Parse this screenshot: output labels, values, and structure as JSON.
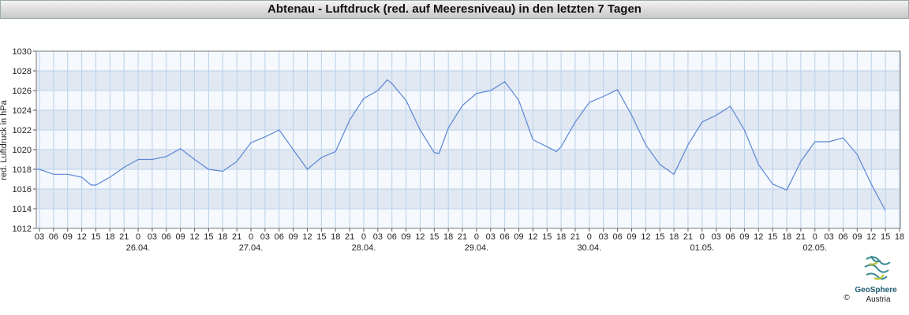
{
  "chart_data": {
    "type": "line",
    "title": "Abtenau - Luftdruck (red. auf Meeresniveau) in den letzten 7 Tagen",
    "y_label": "red. Luftdruck in hPa",
    "color": "#5b86d6",
    "grid": true,
    "ylim": [
      1012,
      1030
    ],
    "yticks": [
      1012,
      1014,
      1016,
      1018,
      1020,
      1022,
      1024,
      1026,
      1028,
      1030
    ],
    "xlim": [
      2.33,
      186.17
    ],
    "xticks": [
      {
        "value": 3,
        "label": "03"
      },
      {
        "value": 6,
        "label": "06"
      },
      {
        "value": 9,
        "label": "09"
      },
      {
        "value": 12,
        "label": "12"
      },
      {
        "value": 15,
        "label": "15"
      },
      {
        "value": 18,
        "label": "18"
      },
      {
        "value": 21,
        "label": "21"
      },
      {
        "value": 24,
        "label": "0"
      },
      {
        "value": 27,
        "label": "03"
      },
      {
        "value": 30,
        "label": "06"
      },
      {
        "value": 33,
        "label": "09"
      },
      {
        "value": 36,
        "label": "12"
      },
      {
        "value": 39,
        "label": "15"
      },
      {
        "value": 42,
        "label": "18"
      },
      {
        "value": 45,
        "label": "21"
      },
      {
        "value": 48,
        "label": "0"
      },
      {
        "value": 51,
        "label": "03"
      },
      {
        "value": 54,
        "label": "06"
      },
      {
        "value": 57,
        "label": "09"
      },
      {
        "value": 60,
        "label": "12"
      },
      {
        "value": 63,
        "label": "15"
      },
      {
        "value": 66,
        "label": "18"
      },
      {
        "value": 69,
        "label": "21"
      },
      {
        "value": 72,
        "label": "0"
      },
      {
        "value": 75,
        "label": "03"
      },
      {
        "value": 78,
        "label": "06"
      },
      {
        "value": 81,
        "label": "09"
      },
      {
        "value": 84,
        "label": "12"
      },
      {
        "value": 87,
        "label": "15"
      },
      {
        "value": 90,
        "label": "18"
      },
      {
        "value": 93,
        "label": "21"
      },
      {
        "value": 96,
        "label": "0"
      },
      {
        "value": 99,
        "label": "03"
      },
      {
        "value": 102,
        "label": "06"
      },
      {
        "value": 105,
        "label": "09"
      },
      {
        "value": 108,
        "label": "12"
      },
      {
        "value": 111,
        "label": "15"
      },
      {
        "value": 114,
        "label": "18"
      },
      {
        "value": 117,
        "label": "21"
      },
      {
        "value": 120,
        "label": "0"
      },
      {
        "value": 123,
        "label": "03"
      },
      {
        "value": 126,
        "label": "06"
      },
      {
        "value": 129,
        "label": "09"
      },
      {
        "value": 132,
        "label": "12"
      },
      {
        "value": 135,
        "label": "15"
      },
      {
        "value": 138,
        "label": "18"
      },
      {
        "value": 141,
        "label": "21"
      },
      {
        "value": 144,
        "label": "0"
      },
      {
        "value": 147,
        "label": "03"
      },
      {
        "value": 150,
        "label": "06"
      },
      {
        "value": 153,
        "label": "09"
      },
      {
        "value": 156,
        "label": "12"
      },
      {
        "value": 159,
        "label": "15"
      },
      {
        "value": 162,
        "label": "18"
      },
      {
        "value": 165,
        "label": "21"
      },
      {
        "value": 168,
        "label": "0"
      },
      {
        "value": 171,
        "label": "03"
      },
      {
        "value": 174,
        "label": "06"
      },
      {
        "value": 177,
        "label": "09"
      },
      {
        "value": 180,
        "label": "12"
      },
      {
        "value": 183,
        "label": "15"
      },
      {
        "value": 186,
        "label": "18"
      }
    ],
    "date_ticks": [
      {
        "value": 24,
        "label": "26.04."
      },
      {
        "value": 48,
        "label": "27.04."
      },
      {
        "value": 72,
        "label": "28.04."
      },
      {
        "value": 96,
        "label": "29.04."
      },
      {
        "value": 120,
        "label": "30.04."
      },
      {
        "value": 144,
        "label": "01.05."
      },
      {
        "value": 168,
        "label": "02.05."
      }
    ],
    "x": [
      2.33,
      3,
      6,
      9,
      12,
      14,
      15,
      18,
      21,
      24,
      27,
      30,
      33,
      36,
      39,
      42,
      45,
      48,
      51,
      54,
      57,
      60,
      63,
      66,
      69,
      72,
      75,
      77,
      78,
      81,
      84,
      87,
      88,
      90,
      93,
      96,
      99,
      102,
      105,
      108,
      111,
      113,
      114,
      117,
      120,
      123,
      126,
      129,
      132,
      135,
      138,
      141,
      144,
      147,
      150,
      153,
      156,
      159,
      162,
      165,
      168,
      171,
      174,
      177,
      180,
      183
    ],
    "values": [
      1018.0,
      1018.0,
      1017.5,
      1017.5,
      1017.2,
      1016.4,
      1016.4,
      1017.2,
      1018.2,
      1019.0,
      1019.0,
      1019.3,
      1020.1,
      1019.0,
      1018.0,
      1017.8,
      1018.8,
      1020.7,
      1021.3,
      1022.0,
      1020.0,
      1018.0,
      1019.2,
      1019.8,
      1023.0,
      1025.2,
      1026.0,
      1027.1,
      1026.7,
      1025.0,
      1022.0,
      1019.7,
      1019.6,
      1022.2,
      1024.5,
      1025.7,
      1026.0,
      1026.9,
      1025.0,
      1021.0,
      1020.3,
      1019.8,
      1020.3,
      1022.8,
      1024.8,
      1025.4,
      1026.1,
      1023.5,
      1020.5,
      1018.5,
      1017.5,
      1020.5,
      1022.8,
      1023.5,
      1024.4,
      1022.0,
      1018.5,
      1016.5,
      1015.9,
      1018.8,
      1020.8,
      1020.8,
      1021.2,
      1019.5,
      1016.5,
      1013.8
    ],
    "logo": {
      "name": "GeoSphere",
      "sub": "Austria",
      "copyright": "©"
    }
  }
}
